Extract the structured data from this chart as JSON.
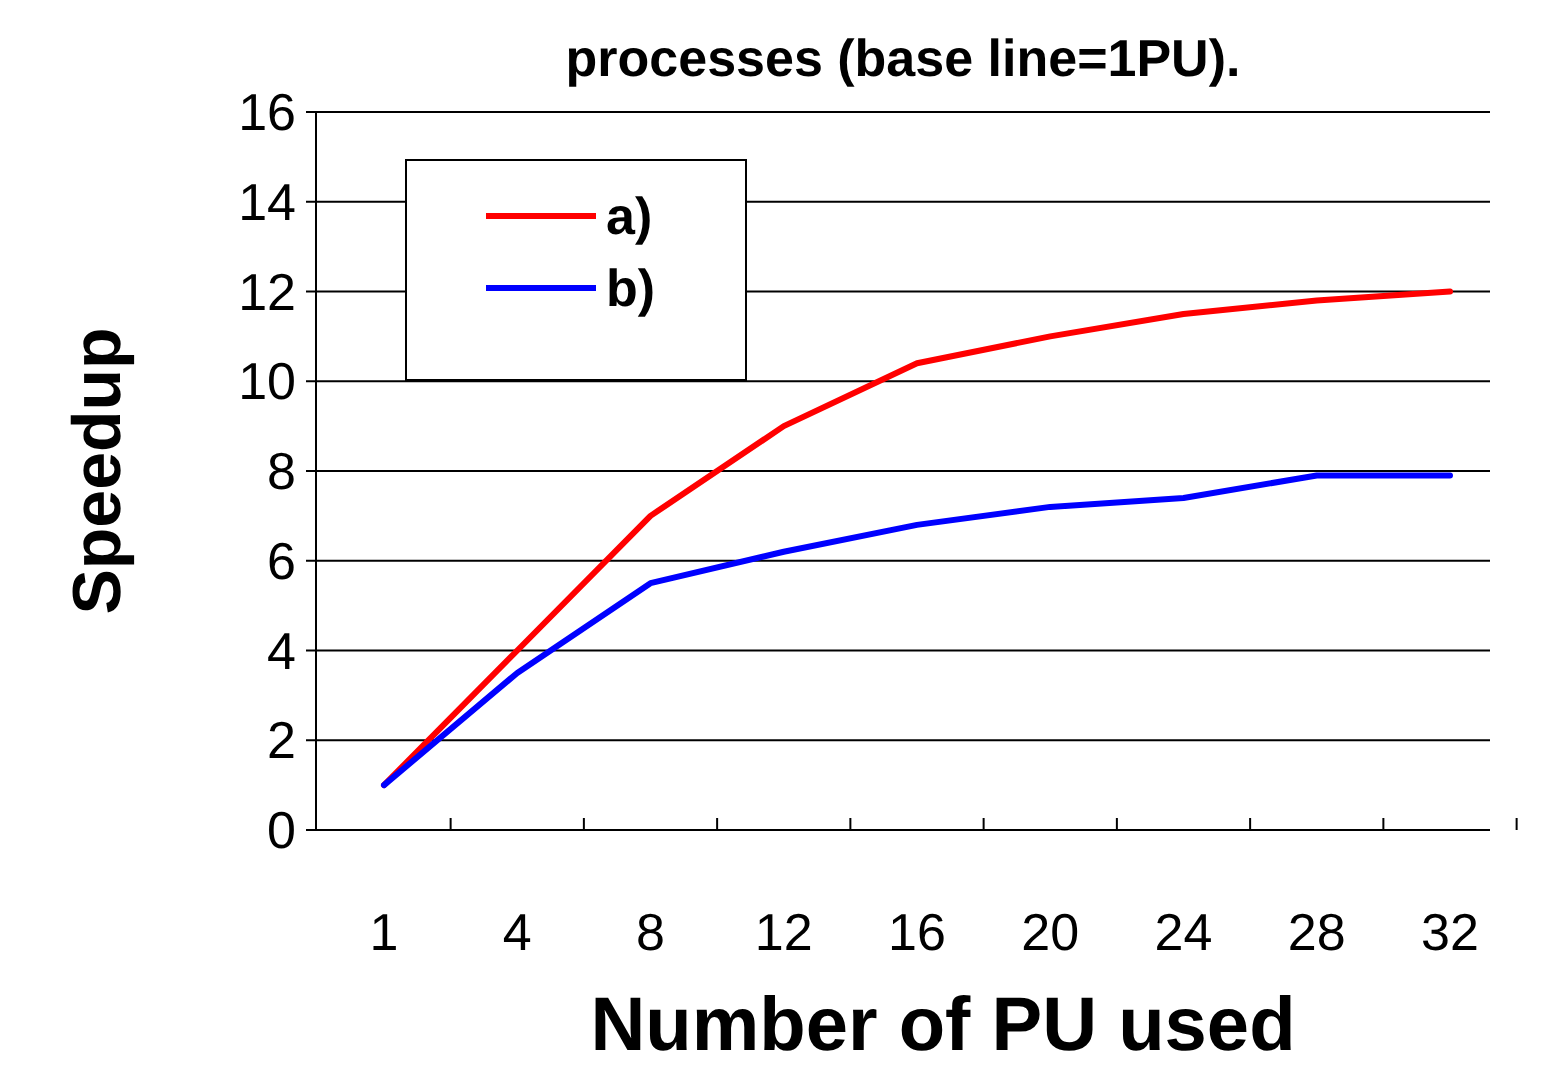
{
  "chart_data": {
    "type": "line",
    "title": "processes (base line=1PU).",
    "xlabel": "Number of PU used",
    "ylabel": "Speedup",
    "categories": [
      "1",
      "4",
      "8",
      "12",
      "16",
      "20",
      "24",
      "28",
      "32"
    ],
    "series": [
      {
        "name": "a)",
        "color": "#ff0000",
        "values": [
          1,
          4,
          7,
          9,
          10.4,
          11,
          11.5,
          11.8,
          12
        ]
      },
      {
        "name": "b)",
        "color": "#0000ff",
        "values": [
          1,
          3.5,
          5.5,
          6.2,
          6.8,
          7.2,
          7.4,
          7.9,
          7.9
        ]
      }
    ],
    "ylim": [
      0,
      16
    ],
    "yticks": [
      0,
      2,
      4,
      6,
      8,
      10,
      12,
      14,
      16
    ],
    "grid": "y",
    "legend": "top left",
    "marker": "none",
    "line_style": "solid"
  }
}
